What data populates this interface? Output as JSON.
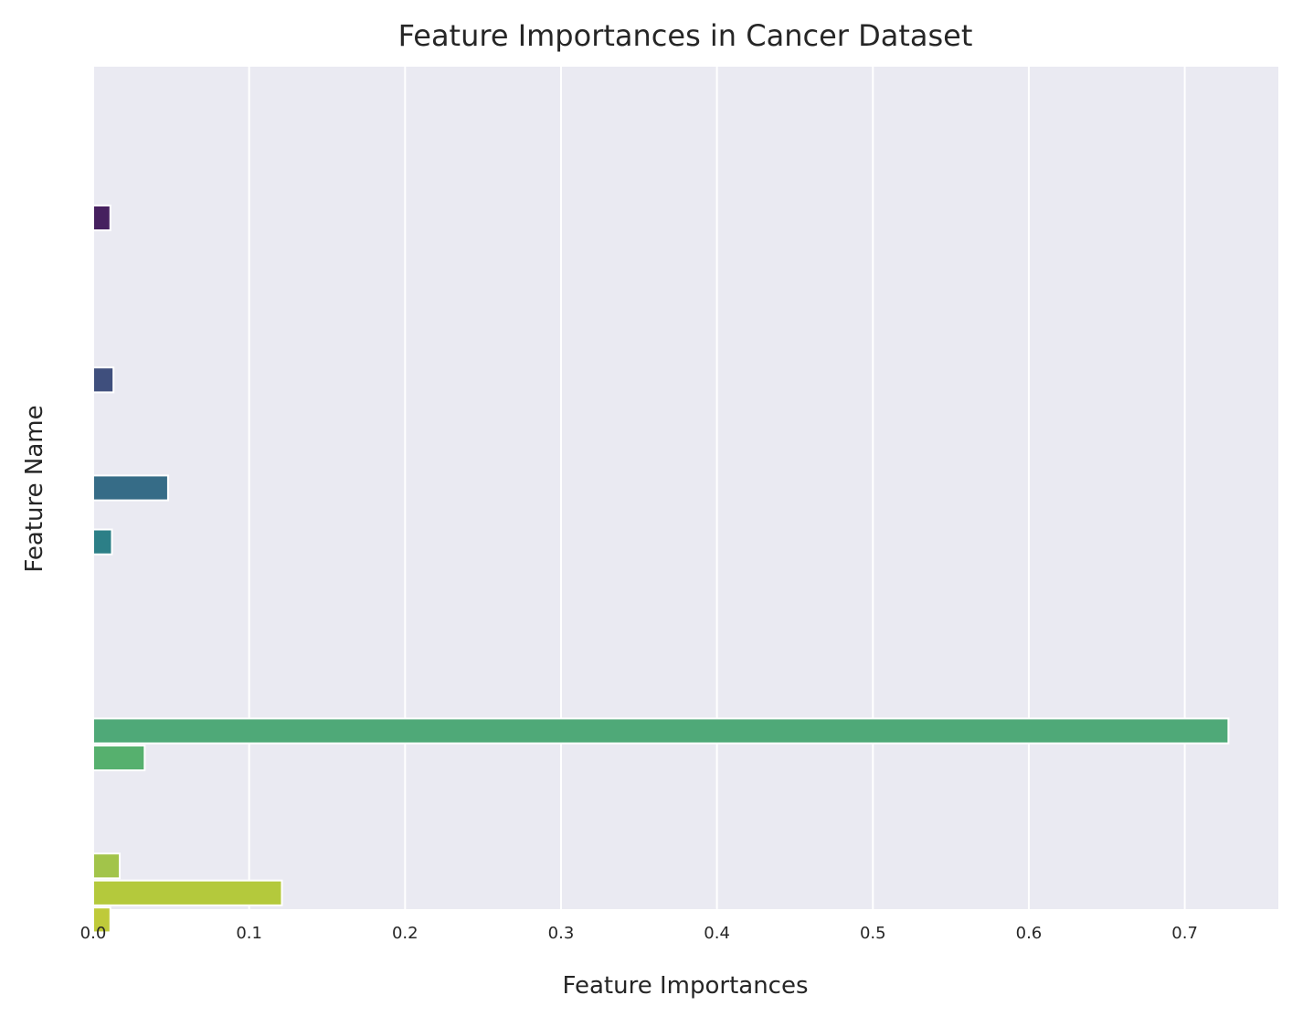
{
  "chart_data": {
    "type": "bar",
    "orientation": "horizontal",
    "title": "Feature Importances in Cancer Dataset",
    "xlabel": "Feature Importances",
    "ylabel": "Feature Name",
    "xlim": [
      0,
      0.76
    ],
    "x_ticks": [
      0.0,
      0.1,
      0.2,
      0.3,
      0.4,
      0.5,
      0.6,
      0.7
    ],
    "x_tick_labels": [
      "0.0",
      "0.1",
      "0.2",
      "0.3",
      "0.4",
      "0.5",
      "0.6",
      "0.7"
    ],
    "grid": true,
    "background": "#eaeaf2",
    "palette": "viridis",
    "row_count": 30,
    "bar_rows": [
      5,
      11,
      15,
      17,
      24,
      25,
      29,
      30,
      31
    ],
    "values": [
      0.011,
      0.013,
      0.048,
      0.012,
      0.728,
      0.033,
      0.017,
      0.121,
      0.011
    ],
    "colors": [
      "#46205f",
      "#3f4f7d",
      "#366c87",
      "#2c7f87",
      "#4fa978",
      "#56b06e",
      "#a2c44a",
      "#b4c93c",
      "#bfca3a"
    ]
  }
}
